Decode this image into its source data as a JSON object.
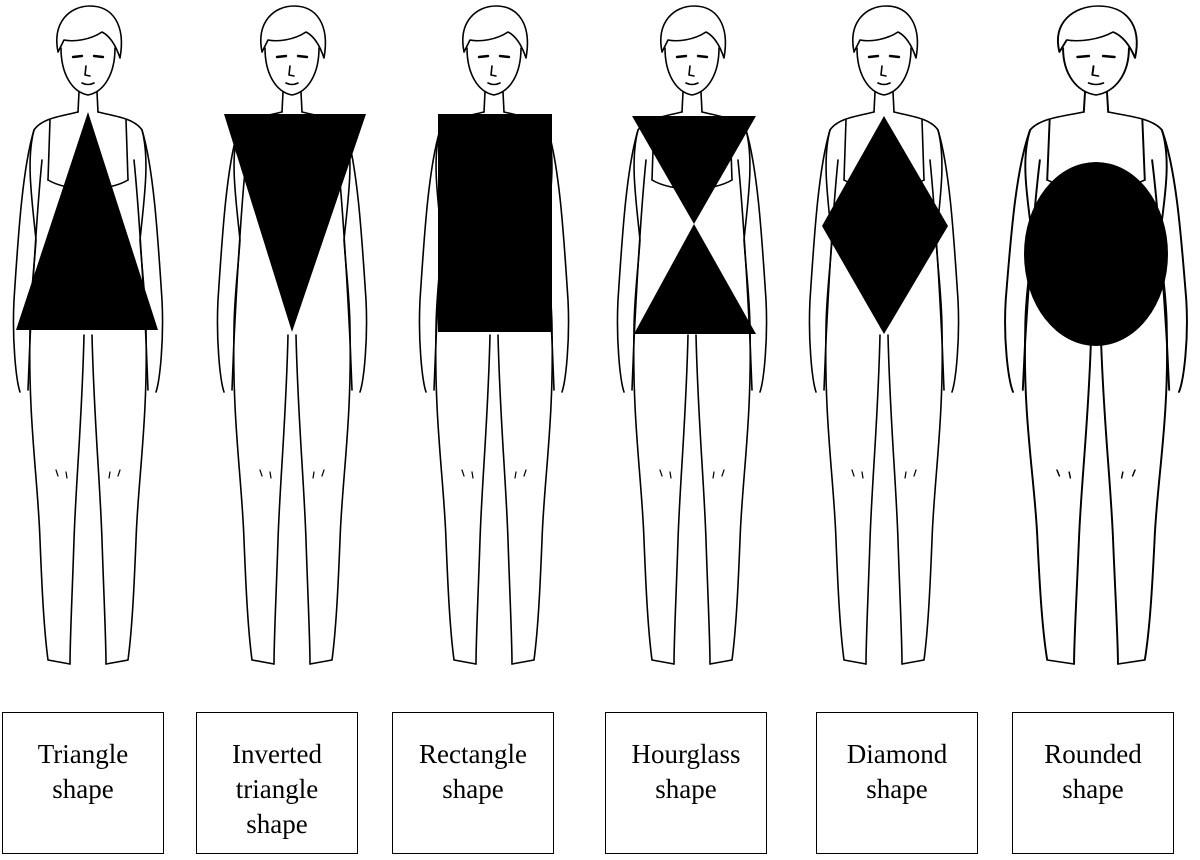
{
  "figures": [
    {
      "id": "triangle",
      "shape_icon": "triangle-icon",
      "label": "Triangle\nshape"
    },
    {
      "id": "inverted-triangle",
      "shape_icon": "inverted-triangle-icon",
      "label": "Inverted\ntriangle\nshape"
    },
    {
      "id": "rectangle",
      "shape_icon": "rectangle-icon",
      "label": "Rectangle\nshape"
    },
    {
      "id": "hourglass",
      "shape_icon": "hourglass-icon",
      "label": "Hourglass\nshape"
    },
    {
      "id": "diamond",
      "shape_icon": "diamond-icon",
      "label": "Diamond\nshape"
    },
    {
      "id": "rounded",
      "shape_icon": "oval-icon",
      "label": "Rounded\nshape"
    }
  ],
  "colors": {
    "ink": "#000000",
    "paper": "#ffffff"
  }
}
